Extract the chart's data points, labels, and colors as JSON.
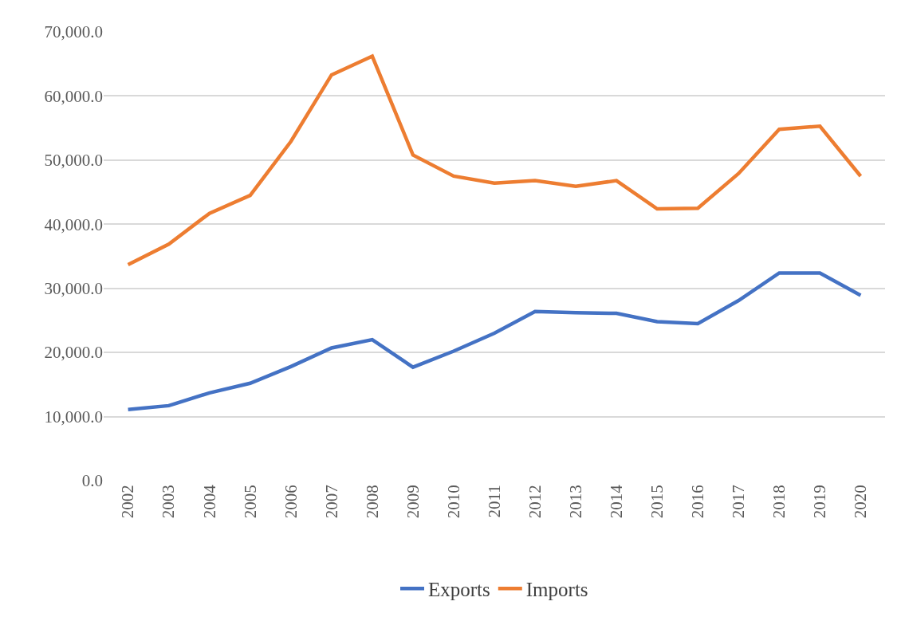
{
  "chart_data": {
    "type": "line",
    "categories": [
      "2002",
      "2003",
      "2004",
      "2005",
      "2006",
      "2007",
      "2008",
      "2009",
      "2010",
      "2011",
      "2012",
      "2013",
      "2014",
      "2015",
      "2016",
      "2017",
      "2018",
      "2019",
      "2020"
    ],
    "series": [
      {
        "name": "Exports",
        "color": "#4472c4",
        "values": [
          11100,
          11700,
          13700,
          15200,
          17800,
          20700,
          22000,
          17700,
          20200,
          23000,
          26400,
          26200,
          26100,
          24800,
          24500,
          28100,
          32400,
          32400,
          28900
        ]
      },
      {
        "name": "Imports",
        "color": "#ed7d31",
        "values": [
          33700,
          36900,
          41700,
          44500,
          52900,
          63300,
          66200,
          50800,
          47500,
          46400,
          46800,
          45900,
          46800,
          42400,
          42500,
          47900,
          54800,
          55300,
          47500
        ]
      }
    ],
    "ylim": [
      0,
      70000
    ],
    "yticks": [
      {
        "value": 0,
        "label": "0.0"
      },
      {
        "value": 10000,
        "label": "10,000.0"
      },
      {
        "value": 20000,
        "label": "20,000.0"
      },
      {
        "value": 30000,
        "label": "30,000.0"
      },
      {
        "value": 40000,
        "label": "40,000.0"
      },
      {
        "value": 50000,
        "label": "50,000.0"
      },
      {
        "value": 60000,
        "label": "60,000.0"
      },
      {
        "value": 70000,
        "label": "70,000.0"
      }
    ],
    "grid": "y",
    "legend": "bottom",
    "marker": "none",
    "line_style": "solid"
  }
}
